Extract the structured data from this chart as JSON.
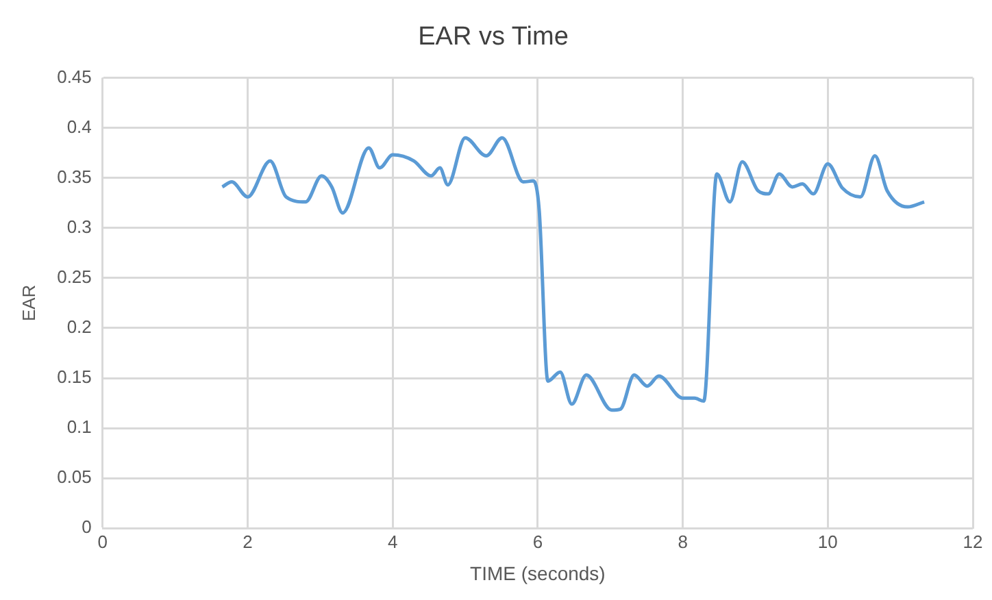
{
  "chart_data": {
    "type": "line",
    "title": "EAR vs Time",
    "xlabel": "TIME (seconds)",
    "ylabel": "EAR",
    "series": [
      {
        "color": "#5b9bd5",
        "x": [
          1.65,
          1.78,
          2.0,
          2.31,
          2.53,
          2.8,
          3.02,
          3.16,
          3.31,
          3.67,
          3.82,
          4.0,
          4.29,
          4.53,
          4.65,
          4.76,
          5.0,
          5.29,
          5.51,
          5.8,
          5.94,
          6.02,
          6.14,
          6.31,
          6.47,
          6.67,
          7.02,
          7.14,
          7.33,
          7.51,
          7.67,
          8.0,
          8.16,
          8.29,
          8.47,
          8.65,
          8.82,
          9.04,
          9.18,
          9.33,
          9.51,
          9.65,
          9.8,
          10.0,
          10.2,
          10.45,
          10.65,
          10.82,
          11.1,
          11.33
        ],
        "values": [
          0.341,
          0.346,
          0.331,
          0.367,
          0.331,
          0.326,
          0.352,
          0.341,
          0.315,
          0.38,
          0.36,
          0.373,
          0.367,
          0.352,
          0.36,
          0.343,
          0.39,
          0.372,
          0.39,
          0.346,
          0.347,
          0.318,
          0.147,
          0.156,
          0.124,
          0.153,
          0.118,
          0.119,
          0.153,
          0.142,
          0.152,
          0.13,
          0.13,
          0.127,
          0.354,
          0.326,
          0.366,
          0.337,
          0.334,
          0.354,
          0.341,
          0.344,
          0.334,
          0.364,
          0.34,
          0.331,
          0.372,
          0.337,
          0.321,
          0.326
        ]
      }
    ],
    "xlim": [
      0,
      12
    ],
    "xticks": [
      0,
      2,
      4,
      6,
      8,
      10,
      12
    ],
    "ylim": [
      0,
      0.45
    ],
    "yticks": [
      0,
      0.05,
      0.1,
      0.15,
      0.2,
      0.25,
      0.3,
      0.35,
      0.4,
      0.45
    ],
    "grid": true,
    "legend": false,
    "marker": "none",
    "line_style": "solid"
  }
}
